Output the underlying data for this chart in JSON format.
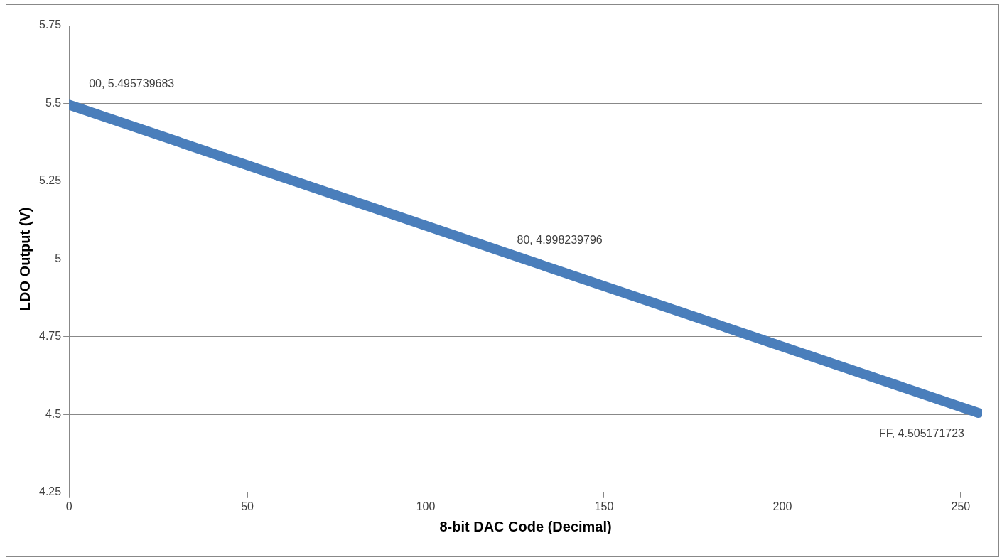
{
  "chart_data": {
    "type": "line",
    "xlabel": "8-bit DAC Code (Decimal)",
    "ylabel": "LDO Output (V)",
    "x": [
      0,
      128,
      255
    ],
    "series": [
      {
        "color": "#4a7ebb",
        "values": [
          5.495739683,
          4.998239796,
          4.505171723
        ]
      }
    ],
    "xlim": [
      0,
      256
    ],
    "xticks": [
      0,
      50,
      100,
      150,
      200,
      250
    ],
    "ylim": [
      4.25,
      5.75
    ],
    "yticks": [
      4.25,
      4.5,
      4.75,
      5,
      5.25,
      5.5,
      5.75
    ],
    "grid": "y",
    "legend": false,
    "marker": "none",
    "line_style": "solid",
    "annotations": [
      {
        "text": "00, 5.495739683",
        "x": 0,
        "y": 5.495739683
      },
      {
        "text": "80, 4.998239796",
        "x": 128,
        "y": 4.998239796
      },
      {
        "text": "FF, 4.505171723",
        "x": 255,
        "y": 4.505171723
      }
    ]
  }
}
